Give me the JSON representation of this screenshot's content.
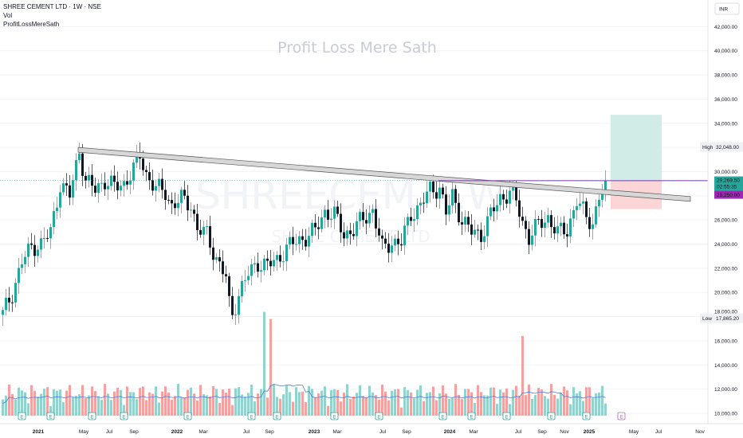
{
  "header": {
    "symbol": "SHREE CEMENT LTD · 1W · NSE",
    "indicator1": "Vol",
    "indicator2": "ProfitLossMereSath"
  },
  "currency": "INR",
  "watermark": {
    "top": "Profit Loss Mere Sath",
    "big": "SHREECEM, 1W",
    "sub": "SHREE CEMENT LTD"
  },
  "labels": {
    "high_tag": "High",
    "high_value": "32,048.00",
    "low_tag": "Low",
    "low_value": "17,865.20",
    "price_value": "29,269.50",
    "countdown": "02:55:35",
    "entry_value": "29,250.00",
    "partial_tick": "18,000.00"
  },
  "colors": {
    "up": "#26a69a",
    "down": "#131722",
    "vol_up": "#80cbc4",
    "vol_down": "#f48f8e",
    "profit_zone": "#d1ece7",
    "loss_zone": "#fcd6d6",
    "purple": "#9c27b0",
    "vol_ma": "#4c7ce3"
  },
  "chart_data": {
    "type": "candlestick",
    "title": "SHREE CEMENT LTD · 1W · NSE",
    "ylim": [
      9500,
      43000
    ],
    "y_ticks": [
      "10,000.00",
      "12,000.00",
      "14,000.00",
      "16,000.00",
      "18,000.00",
      "20,000.00",
      "22,000.00",
      "24,000.00",
      "26,000.00",
      "28,000.00",
      "30,000.00",
      "32,000.00",
      "34,000.00",
      "36,000.00",
      "38,000.00",
      "40,000.00",
      "42,000.00"
    ],
    "x_ticks": [
      "2021",
      "May",
      "Jul",
      "Sep",
      "2022",
      "Mar",
      "Jul",
      "Sep",
      "2023",
      "Mar",
      "Jul",
      "Sep",
      "2024",
      "Mar",
      "Jul",
      "Sep",
      "Nov",
      "2025",
      "May",
      "Jul",
      "Nov"
    ],
    "price_path": [
      [
        0,
        18200
      ],
      [
        3,
        20000
      ],
      [
        6,
        22500
      ],
      [
        9,
        23800
      ],
      [
        12,
        24000
      ],
      [
        15,
        25000
      ],
      [
        18,
        29000
      ],
      [
        21,
        28000
      ],
      [
        23,
        30500
      ],
      [
        24,
        31800
      ],
      [
        26,
        29200
      ],
      [
        29,
        28500
      ],
      [
        32,
        29300
      ],
      [
        35,
        28700
      ],
      [
        38,
        29000
      ],
      [
        41,
        30200
      ],
      [
        43,
        31300
      ],
      [
        45,
        29800
      ],
      [
        48,
        28600
      ],
      [
        51,
        28300
      ],
      [
        53,
        27200
      ],
      [
        56,
        27700
      ],
      [
        59,
        27300
      ],
      [
        61,
        25200
      ],
      [
        64,
        24800
      ],
      [
        67,
        22800
      ],
      [
        70,
        21200
      ],
      [
        71,
        19000
      ],
      [
        72,
        18200
      ],
      [
        74,
        19900
      ],
      [
        77,
        21500
      ],
      [
        80,
        22500
      ],
      [
        83,
        22200
      ],
      [
        86,
        22700
      ],
      [
        89,
        23700
      ],
      [
        92,
        24200
      ],
      [
        95,
        24600
      ],
      [
        98,
        25100
      ],
      [
        101,
        26700
      ],
      [
        104,
        26400
      ],
      [
        107,
        24800
      ],
      [
        110,
        25200
      ],
      [
        113,
        26100
      ],
      [
        116,
        26800
      ],
      [
        119,
        23600
      ],
      [
        122,
        24200
      ],
      [
        125,
        24100
      ],
      [
        128,
        26500
      ],
      [
        131,
        27200
      ],
      [
        134,
        28500
      ],
      [
        137,
        28700
      ],
      [
        139,
        26500
      ],
      [
        141,
        28000
      ],
      [
        144,
        26000
      ],
      [
        147,
        25000
      ],
      [
        150,
        24800
      ],
      [
        153,
        26400
      ],
      [
        156,
        27800
      ],
      [
        159,
        28300
      ],
      [
        161,
        27500
      ],
      [
        163,
        25800
      ],
      [
        165,
        24600
      ],
      [
        168,
        25600
      ],
      [
        171,
        26200
      ],
      [
        174,
        24900
      ],
      [
        177,
        25200
      ],
      [
        180,
        27600
      ],
      [
        183,
        26200
      ],
      [
        185,
        25800
      ],
      [
        187,
        27900
      ],
      [
        189,
        28600
      ]
    ],
    "volume_spikes": [
      [
        82,
        18400
      ],
      [
        84,
        17800
      ],
      [
        163,
        16400
      ]
    ],
    "resistance_line": {
      "from": {
        "bar": 24,
        "price": 31800
      },
      "to": {
        "bar": 205,
        "price": 28000
      }
    },
    "horizontal_line": {
      "price": 29250,
      "from_bar": 137,
      "to_bar": 215
    },
    "position": {
      "entry": 29250,
      "target": 34700,
      "stop": 26900,
      "from_bar": 191,
      "to_bar": 207
    },
    "high": 32048,
    "low": 17865.2,
    "last": 29269.5
  }
}
